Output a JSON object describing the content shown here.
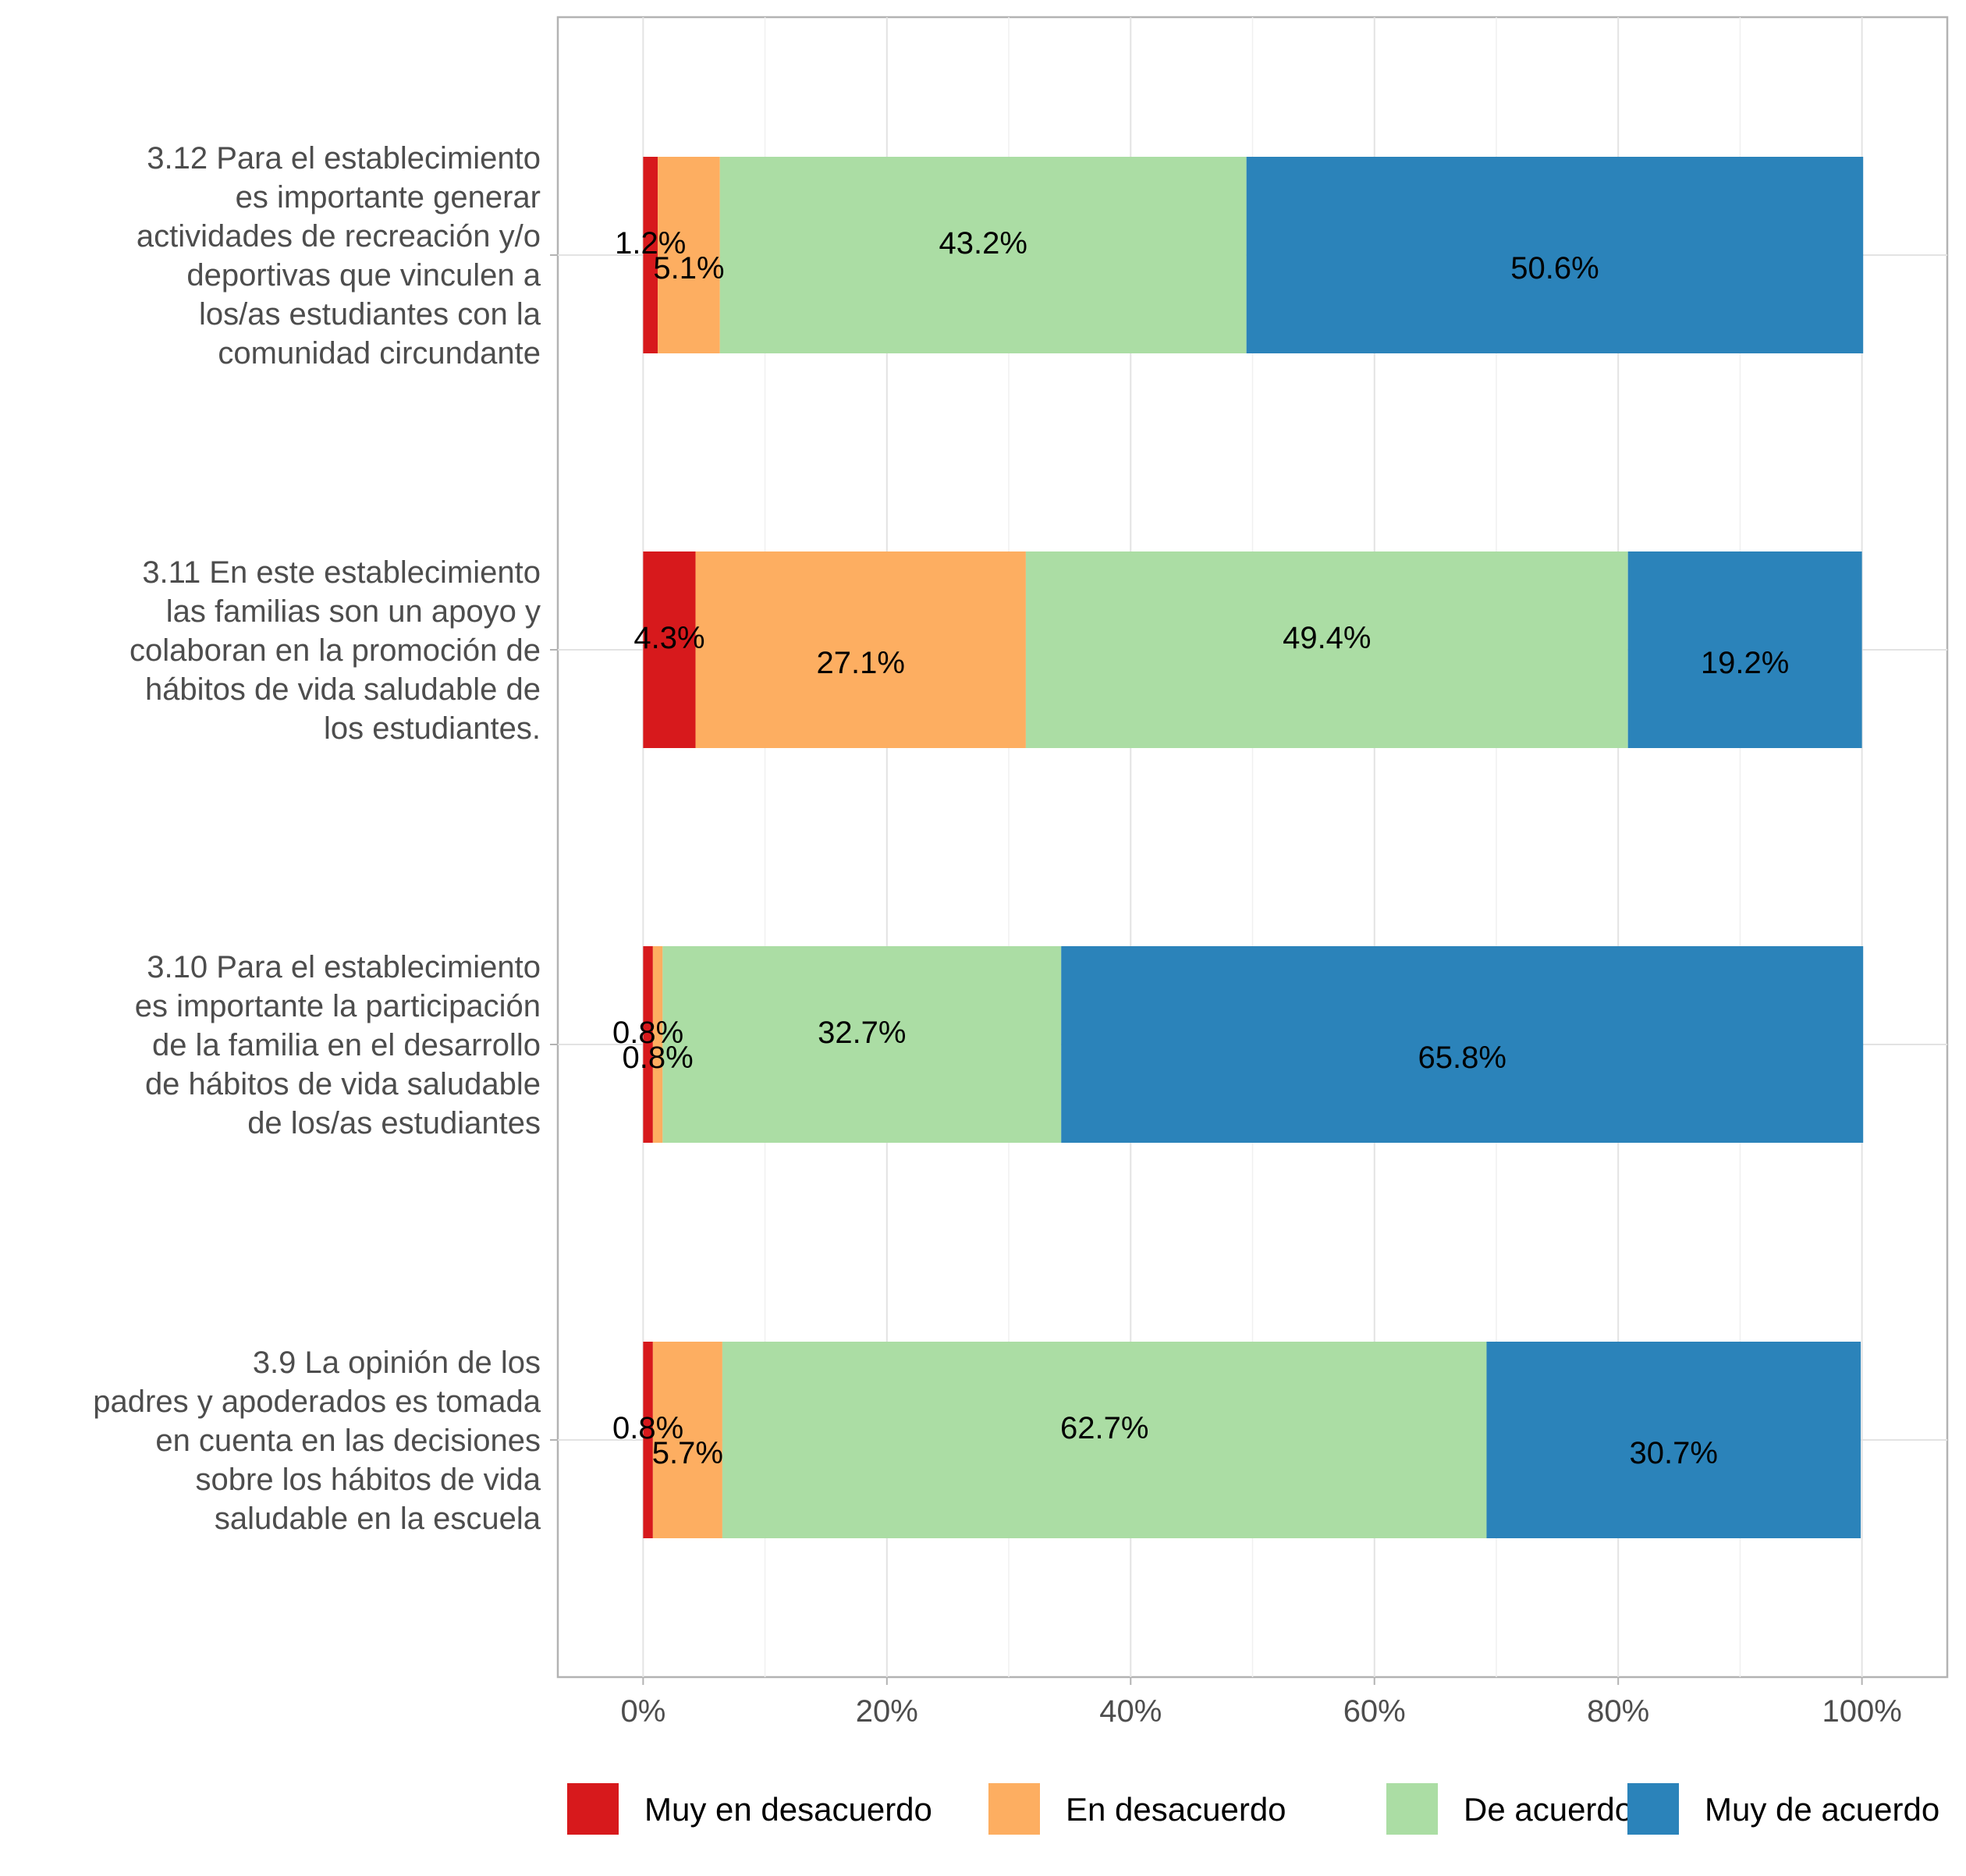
{
  "chart_data": {
    "type": "bar",
    "orientation": "horizontal",
    "stacked": true,
    "categories": [
      "3.12  Para el establecimiento\nes importante generar\nactividades de recreación y/o\ndeportivas que vinculen a\nlos/as estudiantes con la\ncomunidad circundante",
      "3.11  En este establecimiento\nlas familias son un apoyo y\ncolaboran en la promoción de\nhábitos de vida saludable de\nlos estudiantes.",
      "3.10  Para el establecimiento\nes importante la participación\nde la familia en el desarrollo\nde hábitos de vida saludable\nde los/as estudiantes",
      "3.9   La opinión de los\npadres y apoderados es tomada\nen cuenta en las decisiones\nsobre los hábitos de vida\nsaludable en la escuela"
    ],
    "series": [
      {
        "name": "Muy en desacuerdo",
        "color": "#d7191c",
        "values": [
          1.2,
          4.3,
          0.8,
          0.8
        ],
        "labels": [
          "1.2%",
          "4.3%",
          "0.8%",
          "0.8%"
        ]
      },
      {
        "name": "En desacuerdo",
        "color": "#fdae61",
        "values": [
          5.1,
          27.1,
          0.8,
          5.7
        ],
        "labels": [
          "5.1%",
          "27.1%",
          "0.8%",
          "5.7%"
        ]
      },
      {
        "name": "De acuerdo",
        "color": "#abdda4",
        "values": [
          43.2,
          49.4,
          32.7,
          62.7
        ],
        "labels": [
          "43.2%",
          "49.4%",
          "32.7%",
          "62.7%"
        ]
      },
      {
        "name": "Muy de acuerdo",
        "color": "#2b83ba",
        "values": [
          50.6,
          19.2,
          65.8,
          30.7
        ],
        "labels": [
          "50.6%",
          "19.2%",
          "65.8%",
          "30.7%"
        ]
      }
    ],
    "xlim": [
      -7,
      107
    ],
    "xticks": [
      0,
      20,
      40,
      60,
      80,
      100
    ],
    "xtick_labels": [
      "0%",
      "20%",
      "40%",
      "60%",
      "80%",
      "100%"
    ],
    "grid": true,
    "legend_position": "bottom"
  }
}
